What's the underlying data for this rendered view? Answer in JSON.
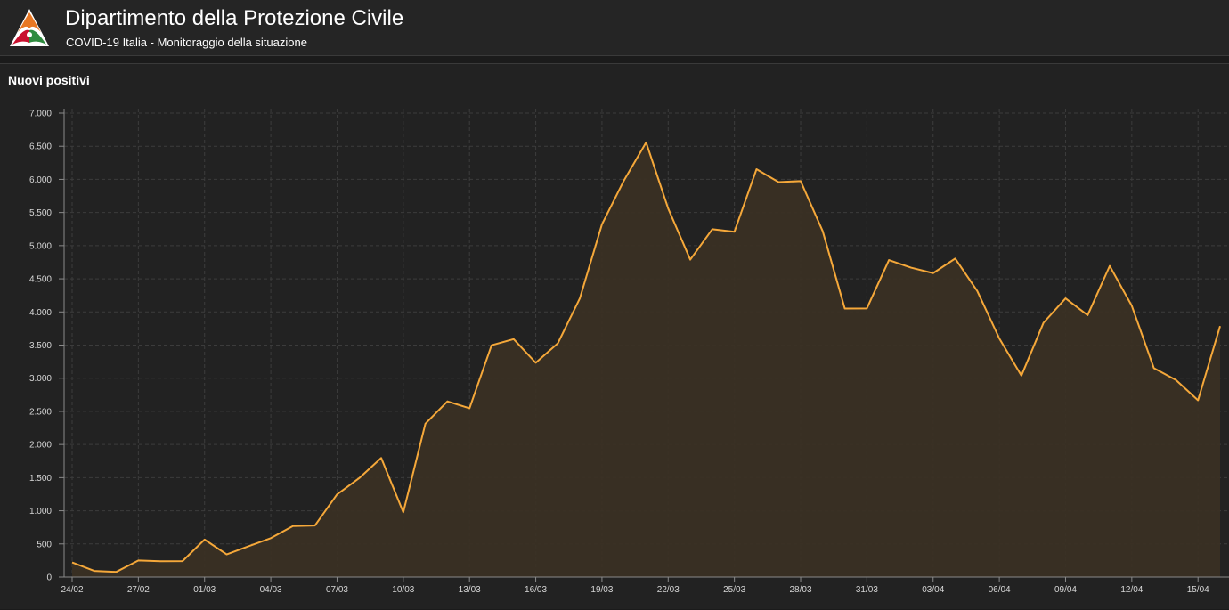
{
  "header": {
    "title": "Dipartimento della Protezione Civile",
    "subtitle": "COVID-19 Italia - Monitoraggio della situazione"
  },
  "panel": {
    "title": "Nuovi positivi"
  },
  "colors": {
    "line": "#f5a83a",
    "area": "#3a3024",
    "grid": "#3c3c3c",
    "background": "#222222",
    "logo_orange": "#e87722",
    "logo_red": "#c8102e",
    "logo_green": "#2e8b3e"
  },
  "chart_data": {
    "type": "area",
    "title": "",
    "xlabel": "",
    "ylabel": "",
    "ylim": [
      0,
      7000
    ],
    "grid": true,
    "y_ticks": [
      0,
      500,
      1000,
      1500,
      2000,
      2500,
      3000,
      3500,
      4000,
      4500,
      5000,
      5500,
      6000,
      6500,
      7000
    ],
    "y_tick_labels": [
      "0",
      "500",
      "1.000",
      "1.500",
      "2.000",
      "2.500",
      "3.000",
      "3.500",
      "4.000",
      "4.500",
      "5.000",
      "5.500",
      "6.000",
      "6.500",
      "7.000"
    ],
    "x_tick_labels": [
      "24/02",
      "27/02",
      "01/03",
      "04/03",
      "07/03",
      "10/03",
      "13/03",
      "16/03",
      "19/03",
      "22/03",
      "25/03",
      "28/03",
      "31/03",
      "03/04",
      "06/04",
      "09/04",
      "12/04",
      "15/04"
    ],
    "x": [
      "24/02",
      "25/02",
      "26/02",
      "27/02",
      "28/02",
      "29/02",
      "01/03",
      "02/03",
      "03/03",
      "04/03",
      "05/03",
      "06/03",
      "07/03",
      "08/03",
      "09/03",
      "10/03",
      "11/03",
      "12/03",
      "13/03",
      "14/03",
      "15/03",
      "16/03",
      "17/03",
      "18/03",
      "19/03",
      "20/03",
      "21/03",
      "22/03",
      "23/03",
      "24/03",
      "25/03",
      "26/03",
      "27/03",
      "28/03",
      "29/03",
      "30/03",
      "31/03",
      "01/04",
      "02/04",
      "03/04",
      "04/04",
      "05/04",
      "06/04",
      "07/04",
      "08/04",
      "09/04",
      "10/04",
      "11/04",
      "12/04",
      "13/04",
      "14/04",
      "15/04",
      "16/04"
    ],
    "values": [
      221,
      93,
      78,
      250,
      238,
      240,
      566,
      342,
      466,
      587,
      769,
      778,
      1247,
      1492,
      1797,
      977,
      2313,
      2651,
      2547,
      3497,
      3590,
      3233,
      3526,
      4207,
      5322,
      5986,
      6557,
      5560,
      4789,
      5249,
      5210,
      6153,
      5959,
      5974,
      5217,
      4050,
      4053,
      4782,
      4668,
      4585,
      4805,
      4316,
      3599,
      3039,
      3836,
      4204,
      3951,
      4694,
      4092,
      3153,
      2972,
      2667,
      3786
    ]
  }
}
